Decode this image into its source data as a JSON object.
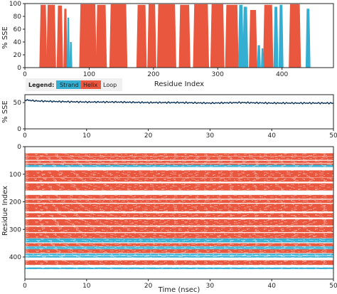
{
  "colors": {
    "strand": "#34aed1",
    "helix": "#e8573e",
    "loop": "#ffffff",
    "rmsd_line": "#0d3358",
    "axis": "#222222",
    "legend_bg": "#f0f0f0"
  },
  "legend": {
    "title": "Legend:",
    "strand": "Strand",
    "helix": "Helix",
    "loop": "Loop"
  },
  "chart_data": [
    {
      "type": "area",
      "xlabel": "Residue Index",
      "ylabel": "% SSE",
      "xlim": [
        0,
        480
      ],
      "ylim": [
        0,
        100
      ],
      "xticks": [
        "0",
        "100",
        "200",
        "300",
        "400"
      ],
      "yticks": [
        "0",
        "20",
        "40",
        "60",
        "80",
        "100"
      ],
      "series": [
        {
          "name": "Helix",
          "segments": [
            {
              "start": 24,
              "end": 33,
              "value": 98
            },
            {
              "start": 35,
              "end": 47,
              "value": 98
            },
            {
              "start": 51,
              "end": 58,
              "value": 97
            },
            {
              "start": 61,
              "end": 65,
              "value": 92
            },
            {
              "start": 86,
              "end": 110,
              "value": 99
            },
            {
              "start": 112,
              "end": 126,
              "value": 98
            },
            {
              "start": 133,
              "end": 158,
              "value": 99
            },
            {
              "start": 175,
              "end": 188,
              "value": 98
            },
            {
              "start": 192,
              "end": 203,
              "value": 99
            },
            {
              "start": 207,
              "end": 234,
              "value": 99
            },
            {
              "start": 241,
              "end": 256,
              "value": 98
            },
            {
              "start": 263,
              "end": 285,
              "value": 99
            },
            {
              "start": 290,
              "end": 309,
              "value": 99
            },
            {
              "start": 313,
              "end": 331,
              "value": 98
            },
            {
              "start": 350,
              "end": 360,
              "value": 90
            },
            {
              "start": 372,
              "end": 385,
              "value": 98
            },
            {
              "start": 412,
              "end": 428,
              "value": 99
            }
          ]
        },
        {
          "name": "Strand",
          "segments": [
            {
              "start": 66,
              "end": 69,
              "value": 78
            },
            {
              "start": 70,
              "end": 73,
              "value": 40
            },
            {
              "start": 333,
              "end": 339,
              "value": 98
            },
            {
              "start": 340,
              "end": 346,
              "value": 95
            },
            {
              "start": 362,
              "end": 366,
              "value": 35
            },
            {
              "start": 368,
              "end": 371,
              "value": 30
            },
            {
              "start": 388,
              "end": 393,
              "value": 95
            },
            {
              "start": 396,
              "end": 401,
              "value": 98
            },
            {
              "start": 438,
              "end": 443,
              "value": 92
            }
          ]
        }
      ]
    },
    {
      "type": "line",
      "xlabel": "",
      "ylabel": "% SSE",
      "xlim": [
        0,
        50
      ],
      "ylim": [
        0,
        65
      ],
      "xticks": [
        "0",
        "10",
        "20",
        "30",
        "40",
        "50"
      ],
      "yticks": [
        "0",
        "50"
      ],
      "series": [
        {
          "name": "",
          "x": [
            0,
            2,
            5,
            10,
            15,
            20,
            25,
            30,
            35,
            40,
            45,
            50
          ],
          "values": [
            55,
            53,
            52,
            51,
            51,
            50,
            50,
            49,
            50,
            49,
            49,
            49
          ]
        }
      ]
    },
    {
      "type": "heatmap",
      "xlabel": "Time (nsec)",
      "ylabel": "Residue Index",
      "xlim": [
        0,
        50
      ],
      "ylim": [
        480,
        0
      ],
      "xticks": [
        "0",
        "10",
        "20",
        "30",
        "40",
        "50"
      ],
      "yticks": [
        "0",
        "100",
        "200",
        "300",
        "400"
      ],
      "bands": {
        "Helix": [
          [
            24,
            33
          ],
          [
            35,
            47
          ],
          [
            51,
            58
          ],
          [
            61,
            65
          ],
          [
            86,
            110
          ],
          [
            112,
            126
          ],
          [
            133,
            158
          ],
          [
            175,
            188
          ],
          [
            192,
            203
          ],
          [
            207,
            234
          ],
          [
            241,
            256
          ],
          [
            263,
            285
          ],
          [
            290,
            309
          ],
          [
            313,
            331
          ],
          [
            350,
            360
          ],
          [
            372,
            385
          ],
          [
            412,
            428
          ]
        ],
        "Strand": [
          [
            66,
            69
          ],
          [
            70,
            73
          ],
          [
            333,
            339
          ],
          [
            340,
            346
          ],
          [
            362,
            366
          ],
          [
            368,
            371
          ],
          [
            388,
            393
          ],
          [
            396,
            401
          ],
          [
            438,
            443
          ]
        ]
      }
    }
  ]
}
